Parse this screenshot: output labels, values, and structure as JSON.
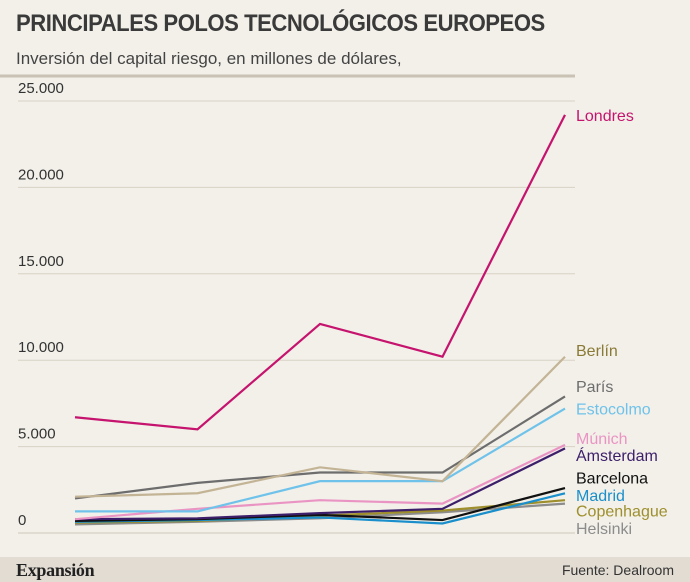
{
  "chart_data": {
    "type": "line",
    "title": "PRINCIPALES POLOS TECNOLÓGICOS EUROPEOS",
    "subtitle": "Inversión del capital riesgo, en millones de dólares,",
    "xlabel": "",
    "ylabel": "",
    "x": [
      1,
      2,
      3,
      4,
      5
    ],
    "ylim": [
      0,
      25000
    ],
    "yticks": [
      0,
      5000,
      10000,
      15000,
      20000,
      25000
    ],
    "ytick_labels": [
      "0",
      "5.000",
      "10.000",
      "15.000",
      "20.000",
      "25.000"
    ],
    "grid": true,
    "series": [
      {
        "name": "Londres",
        "color": "#c5136e",
        "values": [
          6700,
          6000,
          12100,
          10200,
          24200
        ]
      },
      {
        "name": "Berlín",
        "color": "#c4b496",
        "values": [
          2100,
          2300,
          3800,
          3000,
          10200
        ]
      },
      {
        "name": "París",
        "color": "#6d6d6d",
        "values": [
          2000,
          2900,
          3500,
          3500,
          7900
        ]
      },
      {
        "name": "Estocolmo",
        "color": "#6fc2ea",
        "values": [
          1250,
          1250,
          3000,
          3000,
          7200
        ]
      },
      {
        "name": "Múnich",
        "color": "#ea94c4",
        "values": [
          800,
          1400,
          1900,
          1700,
          5100
        ]
      },
      {
        "name": "Ámsterdam",
        "color": "#3c1e6a",
        "values": [
          800,
          850,
          1150,
          1400,
          4900
        ]
      },
      {
        "name": "Barcelona",
        "color": "#111111",
        "values": [
          700,
          800,
          1050,
          750,
          2600
        ]
      },
      {
        "name": "Madrid",
        "color": "#1a8fcb",
        "values": [
          650,
          750,
          900,
          550,
          2300
        ]
      },
      {
        "name": "Copenhague",
        "color": "#9e8f2c",
        "values": [
          600,
          700,
          1000,
          1300,
          1900
        ]
      },
      {
        "name": "Helsinki",
        "color": "#8c8c8c",
        "values": [
          500,
          650,
          850,
          1200,
          1700
        ]
      }
    ],
    "labels": [
      {
        "name": "Londres",
        "text": "Londres",
        "color": "#c5136e",
        "anchor_value": 24200
      },
      {
        "name": "Berlín",
        "text": "Berlín",
        "color": "#8a7a35",
        "anchor_value": 10600
      },
      {
        "name": "París",
        "text": "París",
        "color": "#6d6d6d",
        "anchor_value": 8500
      },
      {
        "name": "Estocolmo",
        "text": "Estocolmo",
        "color": "#6fc2ea",
        "anchor_value": 7200
      },
      {
        "name": "Múnich",
        "text": "Múnich",
        "color": "#ea94c4",
        "anchor_value": 5500
      },
      {
        "name": "Ámsterdam",
        "text": "Ámsterdam",
        "color": "#3c1e6a",
        "anchor_value": 4500
      },
      {
        "name": "Barcelona",
        "text": "Barcelona",
        "color": "#111111",
        "anchor_value": 3200
      },
      {
        "name": "Madrid",
        "text": "Madrid",
        "color": "#1a8fcb",
        "anchor_value": 2200
      },
      {
        "name": "Copenhague",
        "text": "Copenhague",
        "color": "#9e8f2c",
        "anchor_value": 1300
      },
      {
        "name": "Helsinki",
        "text": "Helsinki",
        "color": "#8c8c8c",
        "anchor_value": 300
      }
    ]
  },
  "footer": {
    "brand": "Expansión",
    "source": "Fuente: Dealroom"
  }
}
